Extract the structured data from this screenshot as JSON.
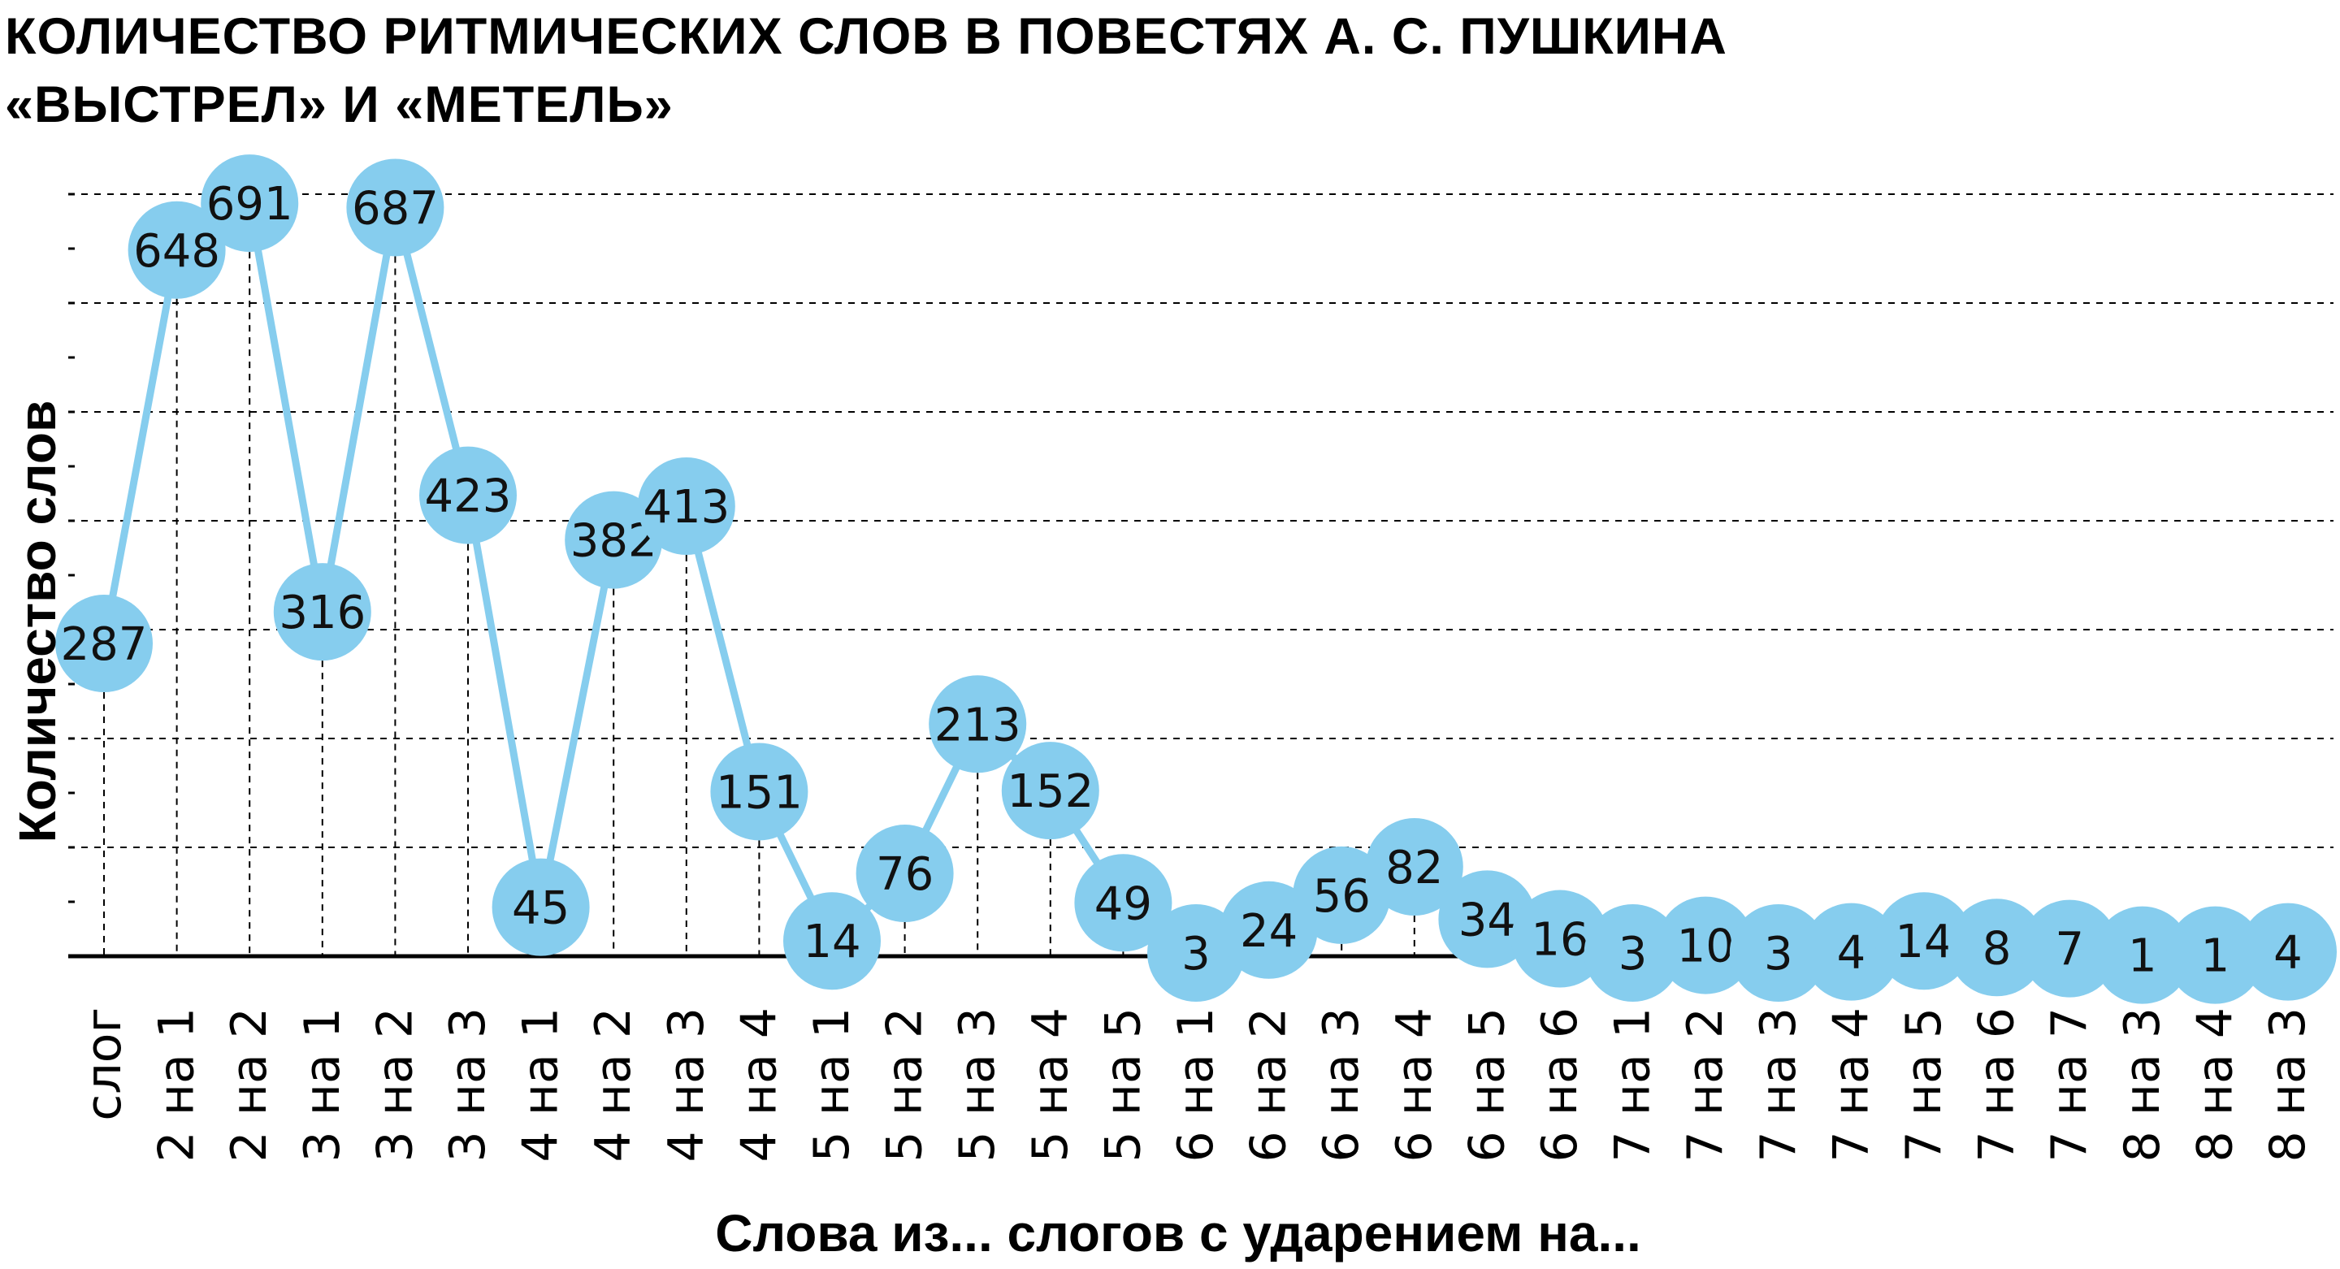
{
  "chart_data": {
    "type": "line",
    "title_lines": [
      "КОЛИЧЕСТВО РИТМИЧЕСКИХ СЛОВ В ПОВЕСТЯХ А. С. ПУШКИНА",
      "«ВЫСТРЕЛ» И «МЕТЕЛЬ»"
    ],
    "xlabel": "Слова из... слогов с ударением на...",
    "ylabel": "Количество слов",
    "categories": [
      "слог",
      "2 на 1",
      "2 на 2",
      "3 на 1",
      "3 на 2",
      "3 на 3",
      "4 на 1",
      "4 на 2",
      "4 на 3",
      "4 на 4",
      "5 на 1",
      "5 на 2",
      "5 на 3",
      "5 на 4",
      "5 на 5",
      "6 на 1",
      "6 на 2",
      "6 на 3",
      "6 на 4",
      "6 на 5",
      "6 на 6",
      "7 на 1",
      "7 на 2",
      "7 на 3",
      "7 на 4",
      "7 на 5",
      "7 на 6",
      "7 на 7",
      "8 на 3",
      "8 на 4",
      "8 на 3"
    ],
    "values": [
      287,
      648,
      691,
      316,
      687,
      423,
      45,
      382,
      413,
      151,
      14,
      76,
      213,
      152,
      49,
      3,
      24,
      56,
      82,
      34,
      16,
      3,
      10,
      3,
      4,
      14,
      8,
      7,
      1,
      1,
      4
    ],
    "ylim": [
      0,
      700
    ],
    "grid": true,
    "grid_style": "dashed",
    "line_color": "#86CDEE",
    "marker_color": "#86CDEE"
  }
}
